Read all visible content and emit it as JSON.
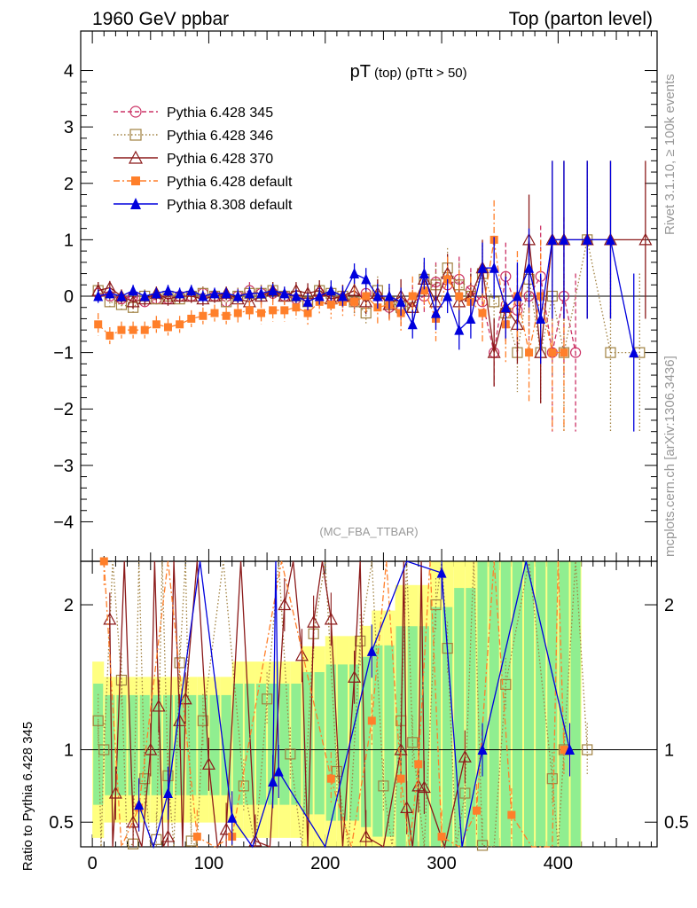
{
  "header": {
    "left": "1960 GeV ppbar",
    "right": "Top (parton level)"
  },
  "side": {
    "rivet": "Rivet 3.1.10, ≥ 100k events",
    "mcplots": "mcplots.cern.ch [arXiv:1306.3436]"
  },
  "chart_data": {
    "type": "scatter",
    "title": "pT (top) (pTtt > 50)",
    "title_main": "pT",
    "title_sub": "(top) (pTtt > 50)",
    "analysis_label": "(MC_FBA_TTBAR)",
    "main_ylim": [
      -4.7,
      4.7
    ],
    "main_yticks": [
      "4",
      "3",
      "2",
      "1",
      "0",
      "−1",
      "−2",
      "−3",
      "−4"
    ],
    "main_ytick_values": [
      4,
      3,
      2,
      1,
      0,
      -1,
      -2,
      -3,
      -4
    ],
    "ratio_ylabel": "Ratio to Pythia 6.428 345",
    "ratio_ylim": [
      0.33,
      2.3
    ],
    "ratio_yticks": [
      "2",
      "1",
      "0.5"
    ],
    "ratio_ytick_values": [
      2,
      1,
      0.5
    ],
    "xlim": [
      -10,
      485
    ],
    "xticks": [
      "0",
      "100",
      "200",
      "300",
      "400"
    ],
    "xtick_values": [
      0,
      100,
      200,
      300,
      400
    ],
    "legend_position": "top-left",
    "series": [
      {
        "name": "Pythia 6.428 345",
        "color": "#cc3366",
        "marker": "circle-open",
        "line": "dashed",
        "x": [
          5,
          15,
          25,
          35,
          45,
          55,
          65,
          75,
          85,
          95,
          105,
          115,
          125,
          135,
          145,
          155,
          165,
          175,
          185,
          195,
          205,
          215,
          225,
          235,
          245,
          255,
          265,
          275,
          285,
          295,
          305,
          315,
          325,
          335,
          345,
          355,
          365,
          375,
          385,
          395,
          405,
          415
        ],
        "y": [
          0.05,
          0.0,
          -0.05,
          0.0,
          -0.1,
          -0.05,
          -0.05,
          0.0,
          0.0,
          0.05,
          0.0,
          -0.1,
          0.0,
          0.1,
          0.05,
          0.05,
          0.0,
          -0.05,
          -0.1,
          0.05,
          0.0,
          -0.05,
          -0.1,
          0.05,
          0.0,
          -0.2,
          -0.25,
          -0.1,
          0.0,
          0.25,
          0.2,
          0.3,
          0.1,
          -0.1,
          -1.0,
          0.35,
          -0.25,
          0.0,
          0.35,
          -1.0,
          0.0,
          -1.0
        ],
        "yerr": [
          0.15,
          0.12,
          0.12,
          0.12,
          0.12,
          0.12,
          0.12,
          0.12,
          0.12,
          0.12,
          0.12,
          0.12,
          0.15,
          0.15,
          0.15,
          0.15,
          0.15,
          0.15,
          0.18,
          0.18,
          0.2,
          0.2,
          0.2,
          0.22,
          0.25,
          0.25,
          0.3,
          0.3,
          0.3,
          0.35,
          0.35,
          0.4,
          0.4,
          0.5,
          0.6,
          0.6,
          0.7,
          0.8,
          0.9,
          1.4,
          1.4,
          1.4
        ]
      },
      {
        "name": "Pythia 6.428 346",
        "color": "#a08040",
        "marker": "square-open",
        "line": "dotted",
        "x": [
          5,
          15,
          25,
          35,
          45,
          55,
          65,
          75,
          85,
          95,
          105,
          115,
          125,
          135,
          145,
          155,
          165,
          175,
          185,
          195,
          205,
          215,
          225,
          235,
          245,
          255,
          265,
          275,
          285,
          295,
          305,
          315,
          325,
          335,
          345,
          355,
          365,
          375,
          385,
          395,
          405,
          425,
          445,
          470
        ],
        "y": [
          0.1,
          -0.1,
          -0.15,
          -0.2,
          0.0,
          -0.05,
          0.0,
          -0.05,
          0.0,
          0.05,
          0.0,
          -0.1,
          0.0,
          0.05,
          0.05,
          0.1,
          0.0,
          0.0,
          -0.1,
          0.1,
          0.05,
          0.0,
          -0.1,
          -0.3,
          0.1,
          -0.1,
          -0.2,
          -0.2,
          0.3,
          0.2,
          0.5,
          0.2,
          0.0,
          0.4,
          -0.1,
          -0.3,
          -1.0,
          0.3,
          -1.0,
          0.0,
          -1.0,
          1.0,
          -1.0,
          -1.0
        ],
        "yerr": [
          0.15,
          0.12,
          0.12,
          0.12,
          0.12,
          0.12,
          0.12,
          0.12,
          0.12,
          0.12,
          0.12,
          0.12,
          0.15,
          0.15,
          0.15,
          0.15,
          0.15,
          0.15,
          0.18,
          0.18,
          0.2,
          0.2,
          0.2,
          0.22,
          0.25,
          0.25,
          0.3,
          0.3,
          0.3,
          0.35,
          0.35,
          0.4,
          0.4,
          0.5,
          0.6,
          0.6,
          0.7,
          0.8,
          0.9,
          1.4,
          1.4,
          1.4,
          1.4,
          1.4
        ]
      },
      {
        "name": "Pythia 6.428 370",
        "color": "#8b1a1a",
        "marker": "triangle-open",
        "line": "solid",
        "x": [
          5,
          15,
          25,
          35,
          45,
          55,
          65,
          75,
          85,
          95,
          105,
          115,
          125,
          135,
          145,
          155,
          165,
          175,
          185,
          195,
          205,
          215,
          225,
          235,
          245,
          255,
          265,
          275,
          285,
          295,
          305,
          315,
          325,
          335,
          345,
          355,
          365,
          375,
          385,
          395,
          405,
          425,
          445,
          475
        ],
        "y": [
          0.1,
          0.15,
          0.0,
          -0.1,
          -0.05,
          0.05,
          -0.05,
          0.0,
          0.0,
          -0.05,
          0.0,
          0.05,
          -0.05,
          -0.1,
          0.0,
          0.1,
          0.0,
          0.1,
          0.05,
          0.1,
          -0.05,
          0.0,
          0.1,
          -0.1,
          0.05,
          -0.15,
          0.0,
          -0.2,
          0.3,
          -0.1,
          0.4,
          -0.1,
          0.0,
          0.5,
          -1.0,
          -0.2,
          -0.5,
          1.0,
          -1.0,
          1.0,
          1.0,
          1.0,
          1.0,
          1.0
        ],
        "yerr": [
          0.15,
          0.12,
          0.12,
          0.12,
          0.12,
          0.12,
          0.12,
          0.12,
          0.12,
          0.12,
          0.12,
          0.12,
          0.15,
          0.15,
          0.15,
          0.15,
          0.15,
          0.15,
          0.18,
          0.18,
          0.2,
          0.2,
          0.2,
          0.22,
          0.25,
          0.25,
          0.3,
          0.3,
          0.3,
          0.35,
          0.35,
          0.4,
          0.4,
          0.5,
          0.6,
          0.6,
          0.7,
          0.8,
          0.9,
          1.4,
          1.4,
          1.4,
          1.4,
          1.4
        ]
      },
      {
        "name": "Pythia 6.428 default",
        "color": "#ff7f2a",
        "marker": "square-filled",
        "line": "dashdot",
        "x": [
          5,
          15,
          25,
          35,
          45,
          55,
          65,
          75,
          85,
          95,
          105,
          115,
          125,
          135,
          145,
          155,
          165,
          175,
          185,
          195,
          205,
          215,
          225,
          235,
          245,
          255,
          265,
          275,
          285,
          295,
          305,
          315,
          325,
          335,
          345,
          355,
          365,
          375,
          385,
          395,
          405
        ],
        "y": [
          -0.5,
          -0.7,
          -0.6,
          -0.6,
          -0.6,
          -0.5,
          -0.55,
          -0.5,
          -0.4,
          -0.35,
          -0.3,
          -0.35,
          -0.3,
          -0.25,
          -0.3,
          -0.25,
          -0.25,
          -0.2,
          -0.3,
          -0.1,
          -0.15,
          -0.1,
          -0.1,
          0.0,
          -0.2,
          -0.15,
          -0.3,
          0.0,
          0.1,
          -0.4,
          0.3,
          0.0,
          -0.1,
          -0.3,
          1.0,
          -0.5,
          0.0,
          -1.0,
          0.0,
          -1.0,
          -1.0
        ],
        "yerr": [
          0.2,
          0.15,
          0.15,
          0.15,
          0.15,
          0.15,
          0.15,
          0.15,
          0.15,
          0.15,
          0.15,
          0.15,
          0.18,
          0.18,
          0.2,
          0.2,
          0.2,
          0.2,
          0.22,
          0.22,
          0.25,
          0.25,
          0.25,
          0.28,
          0.3,
          0.3,
          0.35,
          0.35,
          0.35,
          0.4,
          0.4,
          0.45,
          0.45,
          0.55,
          0.7,
          0.7,
          0.8,
          0.9,
          1.0,
          1.4,
          1.4
        ]
      },
      {
        "name": "Pythia 8.308 default",
        "color": "#0000dd",
        "marker": "triangle-filled",
        "line": "solid",
        "x": [
          5,
          15,
          25,
          35,
          45,
          55,
          65,
          75,
          85,
          95,
          105,
          115,
          125,
          135,
          145,
          155,
          165,
          175,
          185,
          195,
          205,
          215,
          225,
          235,
          245,
          255,
          265,
          275,
          285,
          295,
          305,
          315,
          325,
          335,
          345,
          355,
          365,
          375,
          385,
          395,
          405,
          425,
          445,
          465
        ],
        "y": [
          0.0,
          0.05,
          0.0,
          0.1,
          0.0,
          0.05,
          0.1,
          0.05,
          0.1,
          0.0,
          0.05,
          0.05,
          0.0,
          0.05,
          0.05,
          0.1,
          0.05,
          0.0,
          -0.1,
          0.0,
          0.1,
          0.0,
          0.4,
          0.3,
          0.0,
          0.0,
          -0.1,
          -0.5,
          0.4,
          -0.3,
          0.0,
          -0.6,
          -0.4,
          0.5,
          0.5,
          -0.2,
          0.0,
          0.5,
          -0.4,
          1.0,
          1.0,
          1.0,
          1.0,
          -1.0
        ],
        "yerr": [
          0.12,
          0.1,
          0.1,
          0.1,
          0.1,
          0.1,
          0.1,
          0.1,
          0.1,
          0.1,
          0.1,
          0.1,
          0.12,
          0.12,
          0.12,
          0.12,
          0.12,
          0.12,
          0.15,
          0.15,
          0.18,
          0.18,
          0.18,
          0.2,
          0.22,
          0.22,
          0.25,
          0.25,
          0.28,
          0.3,
          0.3,
          0.35,
          0.35,
          0.45,
          0.55,
          0.55,
          0.6,
          0.7,
          0.8,
          1.4,
          1.4,
          1.4,
          1.4,
          1.4
        ]
      }
    ],
    "ratio_band_note": "yellow and green uncertainty bands",
    "ratio": [
      {
        "name": "Pythia 6.428 346",
        "x": [
          5,
          10,
          25,
          35,
          45,
          55,
          65,
          75,
          85,
          95,
          130,
          150,
          170,
          190,
          210,
          230,
          250,
          265,
          275,
          295,
          305,
          320,
          335,
          355,
          395,
          405,
          425
        ],
        "y": [
          1.2,
          1.0,
          1.48,
          0.35,
          0.8,
          0.38,
          0.82,
          1.6,
          0.37,
          1.2,
          0.75,
          1.35,
          0.97,
          1.8,
          0.85,
          1.75,
          0.75,
          1.2,
          1.05,
          2.0,
          1.7,
          0.7,
          0.34,
          1.45,
          0.8,
          1.0,
          1.0
        ]
      },
      {
        "name": "Pythia 6.428 370",
        "x": [
          15,
          20,
          35,
          50,
          57,
          65,
          75,
          80,
          100,
          115,
          140,
          165,
          180,
          190,
          205,
          225,
          235,
          265,
          270,
          280,
          285,
          320
        ],
        "y": [
          1.9,
          0.7,
          0.5,
          1.0,
          1.3,
          0.4,
          1.2,
          1.35,
          0.9,
          0.45,
          0.37,
          2.0,
          1.65,
          1.88,
          1.9,
          1.5,
          0.4,
          1.0,
          0.6,
          0.75,
          0.74,
          0.95
        ]
      },
      {
        "name": "Pythia 6.428 default",
        "x": [
          10,
          40,
          90,
          120,
          205,
          240,
          265,
          280,
          300,
          330,
          360,
          395,
          405
        ],
        "y": [
          2.3,
          0.6,
          0.4,
          0.4,
          0.8,
          1.2,
          0.8,
          0.9,
          0.4,
          0.58,
          0.55,
          0.3,
          1.0
        ]
      },
      {
        "name": "Pythia 8.308 default",
        "x": [
          40,
          65,
          120,
          155,
          160,
          240,
          300,
          335,
          410
        ],
        "y": [
          0.62,
          0.7,
          0.53,
          0.78,
          0.85,
          1.68,
          2.22,
          1.0,
          1.0
        ]
      }
    ]
  }
}
